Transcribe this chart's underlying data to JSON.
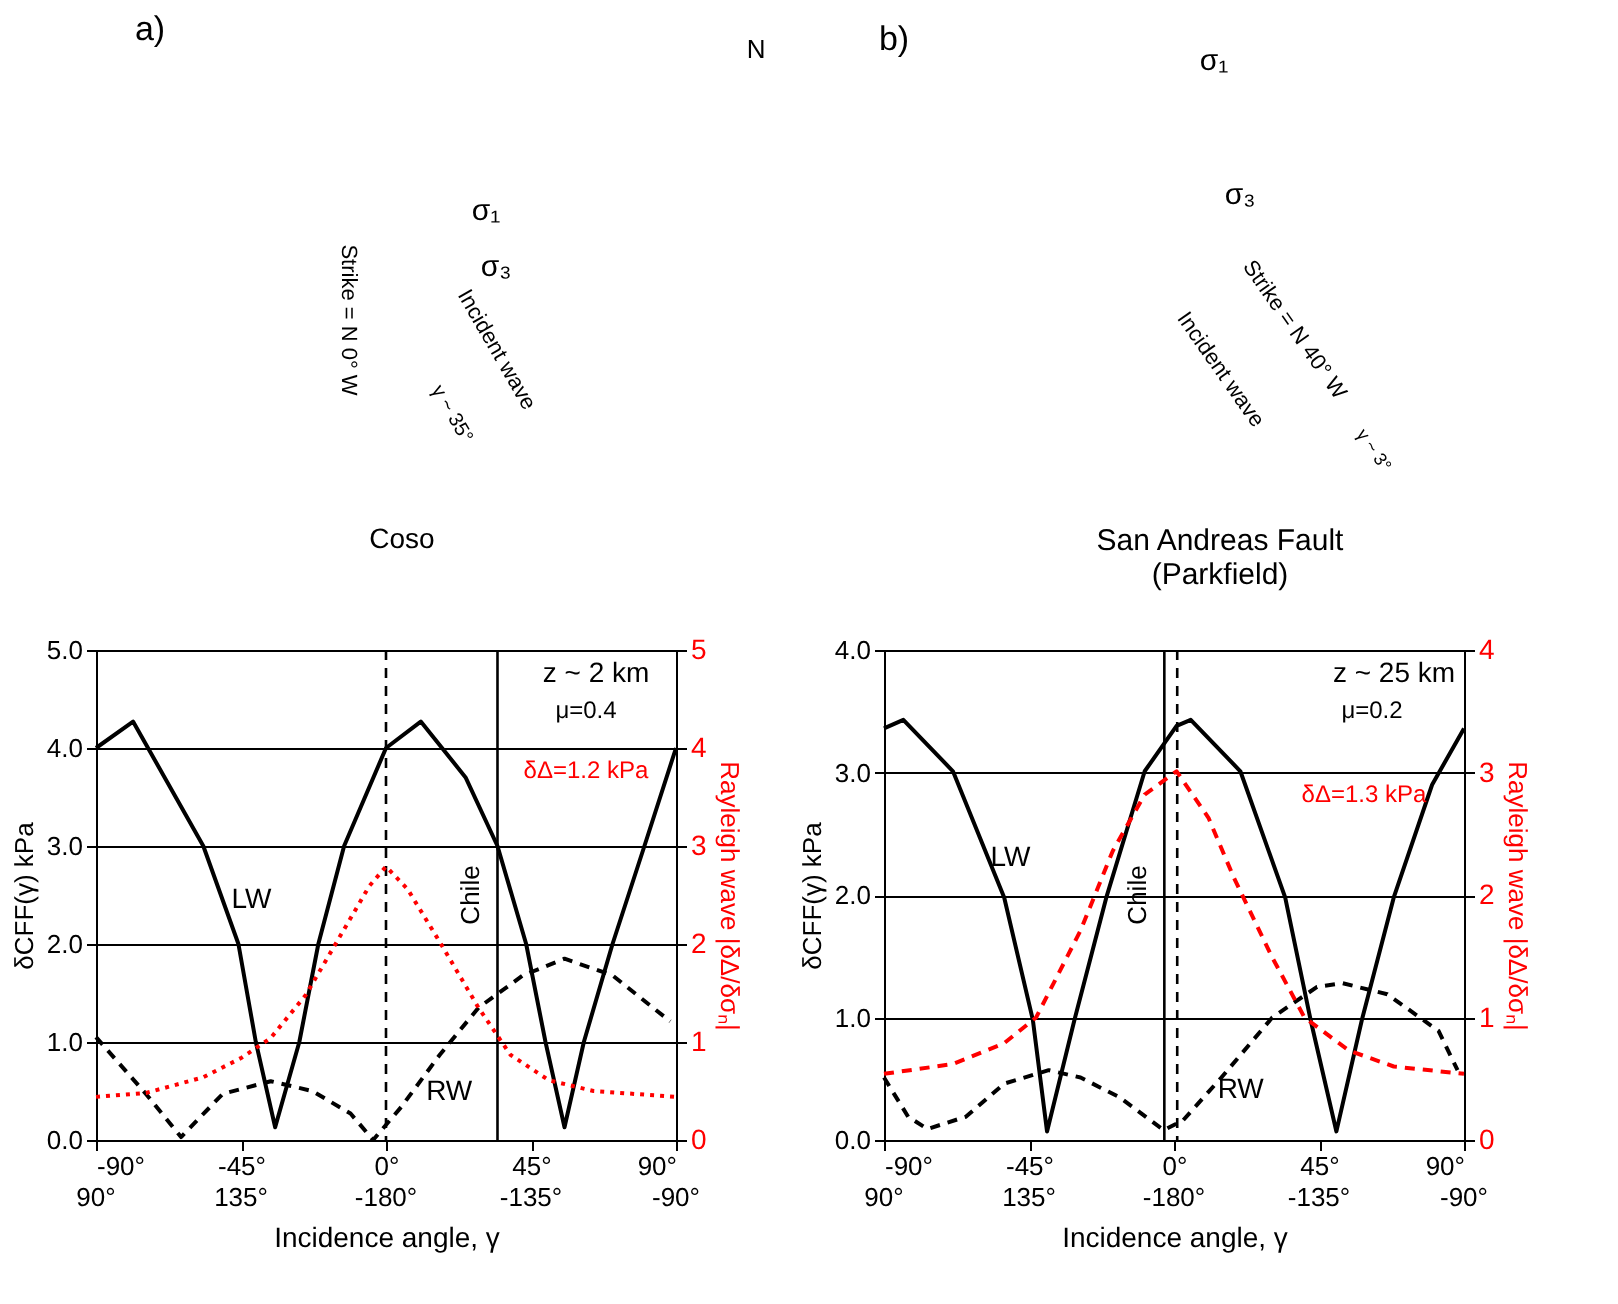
{
  "chart_data": [
    {
      "type": "line",
      "title": "a)",
      "xlabel": "Incidence angle, γ",
      "ylabel": "δCFF(γ) kPa",
      "y2label": "Rayleigh wave |δΔ/δσₙ|",
      "xlim": [
        -90,
        90
      ],
      "xticks": [
        {
          "value": -90,
          "label": "-90°"
        },
        {
          "value": -45,
          "label": "-45°"
        },
        {
          "value": 0,
          "label": "0°"
        },
        {
          "value": 45,
          "label": "45°"
        },
        {
          "value": 90,
          "label": "90°"
        }
      ],
      "ylim": [
        0,
        5
      ],
      "yticks": [
        {
          "value": 0,
          "label": "0.0"
        },
        {
          "value": 1,
          "label": "1.0"
        },
        {
          "value": 2,
          "label": "2.0"
        },
        {
          "value": 3,
          "label": "3.0"
        },
        {
          "value": 4,
          "label": "4.0"
        },
        {
          "value": 5,
          "label": "5.0"
        }
      ],
      "y2lim": [
        0,
        5
      ],
      "y2ticks": [
        0,
        1,
        2,
        3,
        4,
        5
      ],
      "grid": "y",
      "series": [
        {
          "color": "#000000",
          "line_style": "solid",
          "x": [
            -90,
            -78.5,
            -56.7,
            -45.8,
            -40.4,
            -34.4,
            -26.9,
            -21,
            -13,
            0,
            10.8,
            24.7,
            34.6,
            43.5,
            49.5,
            55.4,
            61.4,
            70.3,
            80.2,
            90
          ],
          "values": [
            4.0,
            4.27,
            3.0,
            2.0,
            1.0,
            0.13,
            1.0,
            2.0,
            3.0,
            4.0,
            4.27,
            3.7,
            3.0,
            2.0,
            1.0,
            0.13,
            1.0,
            2.0,
            3.0,
            4.0
          ]
        },
        {
          "color": "#000000",
          "line_style": "dashed",
          "x": [
            -90,
            -74.5,
            -63.6,
            -50.7,
            -35.8,
            -22.9,
            -11,
            -4,
            4.8,
            16.7,
            28.7,
            42.5,
            55.4,
            70.3,
            88.2
          ],
          "values": [
            1.05,
            0.47,
            0.03,
            0.47,
            0.6,
            0.5,
            0.27,
            0.0,
            0.34,
            0.87,
            1.35,
            1.68,
            1.85,
            1.68,
            1.21
          ]
        },
        {
          "color": "#ff0000",
          "line_style": "dotted",
          "axis": "y2",
          "x": [
            -90,
            -74.5,
            -56.7,
            -44.8,
            -35.8,
            -24.9,
            -13,
            -5.2,
            0,
            6.7,
            16.7,
            28.7,
            38.6,
            50.5,
            64.4,
            90
          ],
          "values": [
            0.44,
            0.48,
            0.64,
            0.84,
            1.04,
            1.48,
            2.15,
            2.59,
            2.79,
            2.56,
            2.02,
            1.35,
            0.87,
            0.61,
            0.5,
            0.44
          ]
        }
      ],
      "ref_lines": [
        {
          "axis": "x",
          "value": 0,
          "line_style": "dashed",
          "color": "#000000"
        },
        {
          "axis": "x",
          "value": 34.6,
          "label": "Chile",
          "line_style": "solid",
          "color": "#000000"
        }
      ],
      "annotations": [
        "z ~ 2 km",
        "μ=0.4",
        "δΔ=1.2 kPa",
        "N",
        "σ₁",
        "σ₃",
        "Strike = N 0° W",
        "Incident wave",
        "γ ~ 35°",
        "Coso",
        "LW",
        "RW",
        "90°",
        "135°",
        "-180°",
        "-135°",
        "-90°"
      ]
    },
    {
      "type": "line",
      "title": "b)",
      "xlabel": "Incidence angle, γ",
      "ylabel": "δCFF(γ) kPa",
      "y2label": "Rayleigh wave |δΔ/δσₙ|",
      "xlim": [
        -90,
        90
      ],
      "xticks": [
        {
          "value": -90,
          "label": "-90°"
        },
        {
          "value": -45,
          "label": "-45°"
        },
        {
          "value": 0,
          "label": "0°"
        },
        {
          "value": 45,
          "label": "45°"
        },
        {
          "value": 90,
          "label": "90°"
        }
      ],
      "ylim": [
        0,
        4
      ],
      "yticks": [
        {
          "value": 0,
          "label": "0.0"
        },
        {
          "value": 1,
          "label": "1.0"
        },
        {
          "value": 2,
          "label": "2.0"
        },
        {
          "value": 3,
          "label": "3.0"
        },
        {
          "value": 4,
          "label": "4.0"
        }
      ],
      "y2lim": [
        0,
        4
      ],
      "y2ticks": [
        0,
        1,
        2,
        3,
        4
      ],
      "grid": "y",
      "series": [
        {
          "color": "#000000",
          "line_style": "solid",
          "x": [
            -90,
            -84,
            -68.6,
            -52.7,
            -43.8,
            -39.4,
            -30.9,
            -21,
            -9.1,
            0.8,
            5.2,
            20.6,
            34.5,
            42.4,
            50.4,
            58.3,
            68.2,
            80.1,
            90
          ],
          "values": [
            3.36,
            3.43,
            3.01,
            1.98,
            0.98,
            0.07,
            0.98,
            1.98,
            3.01,
            3.38,
            3.43,
            3.01,
            1.98,
            0.98,
            0.07,
            0.98,
            1.98,
            2.9,
            3.36
          ]
        },
        {
          "color": "#000000",
          "line_style": "dashed",
          "x": [
            -90,
            -82.5,
            -76.5,
            -64.6,
            -52.7,
            -38.9,
            -29,
            -17,
            -3.2,
            2.8,
            14.7,
            30.5,
            44.4,
            52.3,
            66.2,
            82.1,
            88
          ],
          "values": [
            0.51,
            0.19,
            0.09,
            0.19,
            0.46,
            0.57,
            0.51,
            0.35,
            0.08,
            0.16,
            0.51,
            1.0,
            1.25,
            1.28,
            1.19,
            0.89,
            0.57
          ]
        },
        {
          "color": "#ff0000",
          "line_style": "dashed",
          "axis": "y2",
          "x": [
            -90,
            -68.6,
            -52.7,
            -42.8,
            -29,
            -19,
            -9.1,
            0.8,
            10.7,
            18.6,
            30.5,
            40.5,
            54.3,
            68.2,
            90
          ],
          "values": [
            0.54,
            0.62,
            0.79,
            1.0,
            1.71,
            2.36,
            2.82,
            3.01,
            2.63,
            2.14,
            1.49,
            1.0,
            0.73,
            0.6,
            0.54
          ]
        }
      ],
      "ref_lines": [
        {
          "axis": "x",
          "value": 1,
          "line_style": "dashed",
          "color": "#000000"
        },
        {
          "axis": "x",
          "value": -3,
          "label": "Chile",
          "line_style": "solid",
          "color": "#000000"
        }
      ],
      "annotations": [
        "z ~ 25 km",
        "μ=0.2",
        "δΔ=1.3 kPa",
        "σ₁",
        "σ₃",
        "Strike = N 40° W",
        "Incident wave",
        "γ ~ 3°",
        "San Andreas Fault\n(Parkfield)",
        "LW",
        "RW",
        "90°",
        "135°",
        "-180°",
        "-135°",
        "-90°"
      ]
    }
  ]
}
